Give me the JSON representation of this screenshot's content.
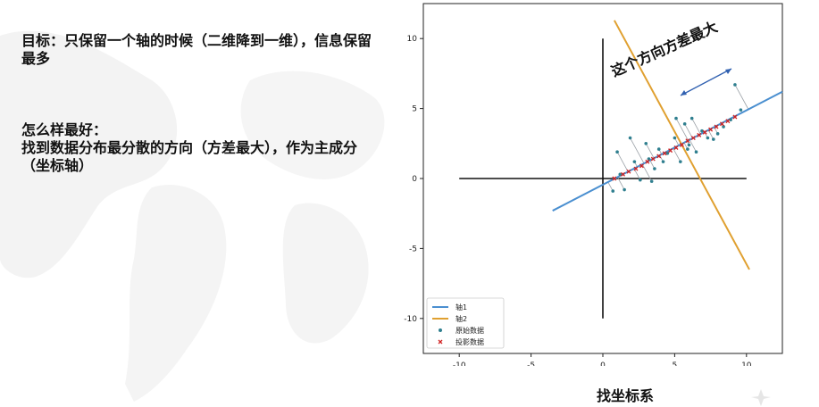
{
  "slide": {
    "paragraph1": "目标：只保留一个轴的时候（二维降到一维），信息保留最多",
    "paragraph2_title": "怎么样最好：",
    "paragraph2_body": "找到数据分布最分散的方向（方差最大），作为主成分（坐标轴）",
    "caption": "找坐标系"
  },
  "chart_data": {
    "type": "scatter",
    "annotation": "这个方向方差最大",
    "xlim": [
      -12.5,
      12.5
    ],
    "ylim": [
      -12.5,
      12.5
    ],
    "x_ticks": [
      -10,
      -5,
      0,
      5,
      10
    ],
    "y_ticks": [
      10,
      5,
      0,
      -5,
      -10
    ],
    "legend": {
      "position": "bottom-left",
      "entries": [
        "轴1",
        "轴2",
        "原始数据",
        "投影数据"
      ]
    },
    "colors": {
      "axis1": "#4a8fd0",
      "axis2": "#e0a030",
      "original": "#2f7f8f",
      "projected": "#d02020",
      "annotation_arrow": "#3060b0"
    },
    "axis1_line": {
      "x": [
        -3.5,
        12.5
      ],
      "y": [
        -2.3,
        6.2
      ]
    },
    "axis2_line": {
      "x": [
        0.8,
        10.2
      ],
      "y": [
        11.3,
        -6.5
      ]
    },
    "original_points": {
      "x": [
        0.7,
        1.0,
        1.5,
        1.9,
        2.2,
        2.6,
        3.0,
        3.2,
        3.4,
        3.9,
        4.2,
        4.5,
        5.0,
        5.1,
        5.4,
        5.7,
        5.9,
        6.2,
        6.5,
        6.9,
        7.3,
        7.7,
        8.0,
        8.4,
        8.9,
        9.2,
        9.6,
        1.2,
        3.6,
        6.0
      ],
      "y": [
        -0.9,
        1.9,
        -0.8,
        2.9,
        1.2,
        -0.1,
        2.5,
        1.4,
        -0.2,
        2.1,
        1.2,
        1.8,
        2.9,
        4.3,
        1.2,
        3.9,
        2.1,
        4.3,
        1.9,
        3.4,
        2.9,
        2.8,
        3.2,
        3.7,
        4.2,
        6.7,
        4.9,
        0.3,
        0.7,
        2.4
      ]
    },
    "projected_points": {
      "x": [
        0.8,
        1.4,
        1.8,
        2.3,
        2.7,
        3.1,
        3.5,
        3.9,
        4.3,
        4.7,
        5.1,
        5.5,
        5.9,
        6.3,
        6.7,
        7.1,
        7.5,
        7.9,
        8.3,
        8.7,
        9.2
      ],
      "y": [
        0.0,
        0.3,
        0.5,
        0.7,
        0.9,
        1.2,
        1.4,
        1.6,
        1.8,
        2.0,
        2.2,
        2.4,
        2.7,
        2.9,
        3.1,
        3.3,
        3.5,
        3.7,
        3.9,
        4.1,
        4.4
      ]
    }
  }
}
